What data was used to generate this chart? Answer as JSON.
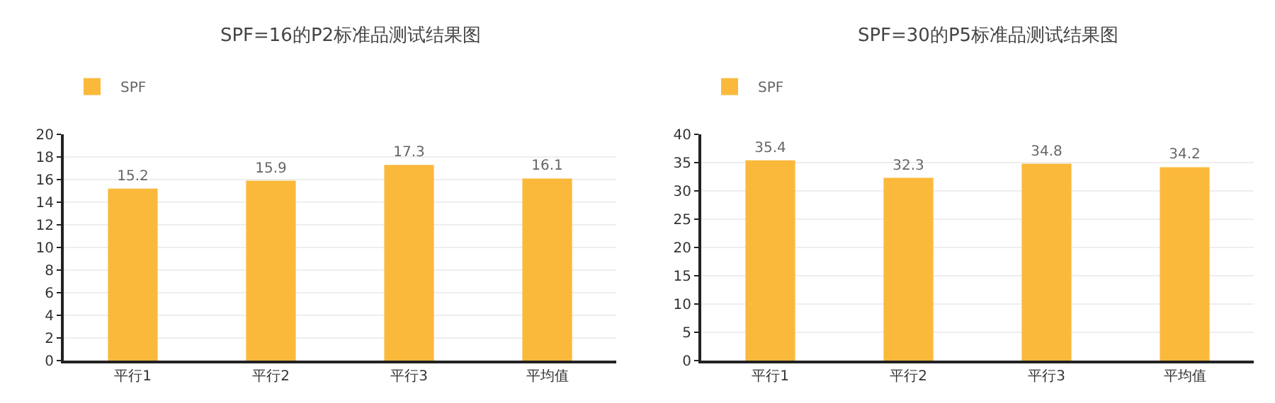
{
  "chart_data": [
    {
      "type": "bar",
      "title": "SPF=16的P2标准品测试结果图",
      "categories": [
        "平行1",
        "平行2",
        "平行3",
        "平均值"
      ],
      "series": [
        {
          "name": "SPF",
          "color": "#fbb93c",
          "values": [
            15.2,
            15.9,
            17.3,
            16.1
          ]
        }
      ],
      "ylim": [
        0,
        20
      ],
      "yticks": [
        0,
        2,
        4,
        6,
        8,
        10,
        12,
        14,
        16,
        18,
        20
      ],
      "grid": "y",
      "legend": "top left",
      "data_labels": true
    },
    {
      "type": "bar",
      "title": "SPF=30的P5标准品测试结果图",
      "categories": [
        "平行1",
        "平行2",
        "平行3",
        "平均值"
      ],
      "series": [
        {
          "name": "SPF",
          "color": "#fbb93c",
          "values": [
            35.4,
            32.3,
            34.8,
            34.2
          ]
        }
      ],
      "ylim": [
        0,
        40
      ],
      "yticks": [
        0,
        5,
        10,
        15,
        20,
        25,
        30,
        35,
        40
      ],
      "grid": "y",
      "legend": "top left",
      "data_labels": true
    }
  ]
}
